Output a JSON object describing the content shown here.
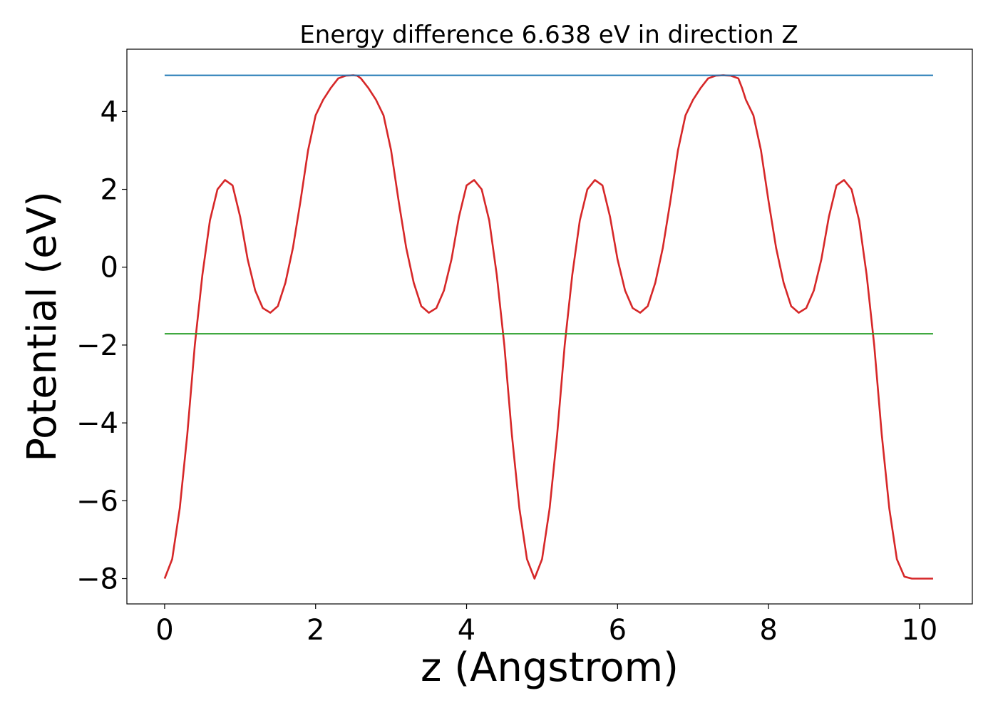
{
  "chart_data": {
    "type": "line",
    "title": "Energy difference 6.638 eV in direction Z",
    "xlabel": "z (Angstrom)",
    "ylabel": "Potential (eV)",
    "xlim": [
      -0.5,
      10.7
    ],
    "ylim": [
      -8.65,
      5.6
    ],
    "xticks": [
      0,
      2,
      4,
      6,
      8,
      10
    ],
    "xtick_labels": [
      "0",
      "2",
      "4",
      "6",
      "8",
      "10"
    ],
    "yticks": [
      -8,
      -6,
      -4,
      -2,
      0,
      2,
      4
    ],
    "ytick_labels": [
      "−8",
      "−6",
      "−4",
      "−2",
      "0",
      "2",
      "4"
    ],
    "grid": false,
    "series": [
      {
        "color": "#d62728",
        "x": [
          0,
          0.1,
          0.2,
          0.3,
          0.4,
          0.5,
          0.6,
          0.7,
          0.8,
          0.9,
          1.0,
          1.1,
          1.2,
          1.3,
          1.4,
          1.5,
          1.6,
          1.7,
          1.8,
          1.9,
          2.0,
          2.1,
          2.2,
          2.3,
          2.4,
          2.5,
          2.55,
          2.6,
          2.7,
          2.8,
          2.9,
          3.0,
          3.1,
          3.2,
          3.3,
          3.4,
          3.5,
          3.6,
          3.7,
          3.8,
          3.9,
          4.0,
          4.1,
          4.2,
          4.3,
          4.4,
          4.5,
          4.6,
          4.7,
          4.8,
          4.9,
          5.0,
          5.1,
          5.2,
          5.3,
          5.4,
          5.5,
          5.6,
          5.7,
          5.8,
          5.9,
          6.0,
          6.1,
          6.2,
          6.3,
          6.4,
          6.5,
          6.6,
          6.7,
          6.8,
          6.9,
          7.0,
          7.1,
          7.2,
          7.3,
          7.4,
          7.5,
          7.6,
          7.65,
          7.7,
          7.8,
          7.9,
          8.0,
          8.1,
          8.2,
          8.3,
          8.4,
          8.5,
          8.6,
          8.7,
          8.8,
          8.9,
          9.0,
          9.1,
          9.2,
          9.3,
          9.4,
          9.5,
          9.6,
          9.7,
          9.8,
          9.9,
          10.0,
          10.1,
          10.18
        ],
        "y": [
          -8.0,
          -7.5,
          -6.2,
          -4.3,
          -2.0,
          -0.2,
          1.2,
          2.0,
          2.24,
          2.1,
          1.3,
          0.2,
          -0.6,
          -1.05,
          -1.17,
          -1.0,
          -0.4,
          0.5,
          1.7,
          3.0,
          3.9,
          4.3,
          4.6,
          4.85,
          4.92,
          4.93,
          4.92,
          4.85,
          4.6,
          4.3,
          3.9,
          3.0,
          1.7,
          0.5,
          -0.4,
          -1.0,
          -1.17,
          -1.05,
          -0.6,
          0.2,
          1.3,
          2.1,
          2.24,
          2.0,
          1.2,
          -0.2,
          -2.0,
          -4.3,
          -6.2,
          -7.5,
          -8.0,
          -7.5,
          -6.2,
          -4.3,
          -2.0,
          -0.2,
          1.2,
          2.0,
          2.24,
          2.1,
          1.3,
          0.2,
          -0.6,
          -1.05,
          -1.17,
          -1.0,
          -0.4,
          0.5,
          1.7,
          3.0,
          3.9,
          4.3,
          4.6,
          4.85,
          4.92,
          4.93,
          4.92,
          4.85,
          4.6,
          4.3,
          3.9,
          3.0,
          1.7,
          0.5,
          -0.4,
          -1.0,
          -1.17,
          -1.05,
          -0.6,
          0.2,
          1.3,
          2.1,
          2.24,
          2.0,
          1.2,
          -0.2,
          -2.0,
          -4.3,
          -6.2,
          -7.5,
          -7.95,
          -8.0,
          -8.0,
          -8.0,
          -8.0
        ]
      },
      {
        "color": "#1f77b4",
        "x": [
          0,
          10.18
        ],
        "y": [
          4.93,
          4.93
        ]
      },
      {
        "color": "#2ca02c",
        "x": [
          0,
          10.18
        ],
        "y": [
          -1.71,
          -1.71
        ]
      }
    ]
  }
}
